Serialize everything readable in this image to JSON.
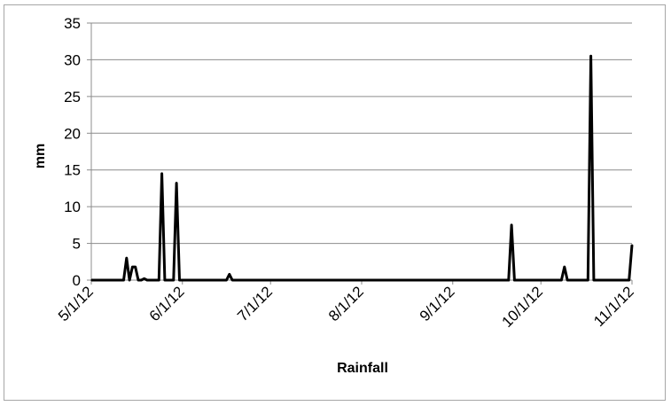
{
  "chart_data": {
    "type": "line",
    "title": "",
    "xlabel": "Rainfall",
    "ylabel": "mm",
    "ylim": [
      0,
      35
    ],
    "yticks": [
      "0",
      "5",
      "10",
      "15",
      "20",
      "25",
      "30",
      "35"
    ],
    "ytick_values": [
      0,
      5,
      10,
      15,
      20,
      25,
      30,
      35
    ],
    "xlim": [
      "2012-05-01",
      "2012-11-01"
    ],
    "xticks": [
      "5/1/12",
      "6/1/12",
      "7/1/12",
      "8/1/12",
      "9/1/12",
      "10/1/12",
      "11/1/12"
    ],
    "xtick_dates": [
      "2012-05-01",
      "2012-06-01",
      "2012-07-01",
      "2012-08-01",
      "2012-09-01",
      "2012-10-01",
      "2012-11-01"
    ],
    "grid": "horizontal",
    "legend": "none",
    "line_color": "#000000",
    "series": [
      {
        "x": [
          "2012-05-01",
          "2012-05-12",
          "2012-05-13",
          "2012-05-14",
          "2012-05-15",
          "2012-05-16",
          "2012-05-17",
          "2012-05-18",
          "2012-05-19",
          "2012-05-20",
          "2012-05-21",
          "2012-05-24",
          "2012-05-25",
          "2012-05-26",
          "2012-05-29",
          "2012-05-30",
          "2012-05-31",
          "2012-06-01",
          "2012-06-02",
          "2012-06-16",
          "2012-06-17",
          "2012-06-18",
          "2012-09-20",
          "2012-09-21",
          "2012-09-22",
          "2012-10-08",
          "2012-10-09",
          "2012-10-10",
          "2012-10-17",
          "2012-10-18",
          "2012-10-19",
          "2012-10-31",
          "2012-11-01"
        ],
        "values": [
          0,
          0,
          3,
          0,
          1.8,
          1.8,
          0,
          0,
          0.2,
          0,
          0,
          0,
          14.5,
          0,
          0,
          13.2,
          0,
          0,
          0,
          0,
          0.8,
          0,
          0,
          7.5,
          0,
          0,
          1.8,
          0,
          0,
          30.5,
          0,
          0,
          4.8
        ]
      }
    ]
  }
}
